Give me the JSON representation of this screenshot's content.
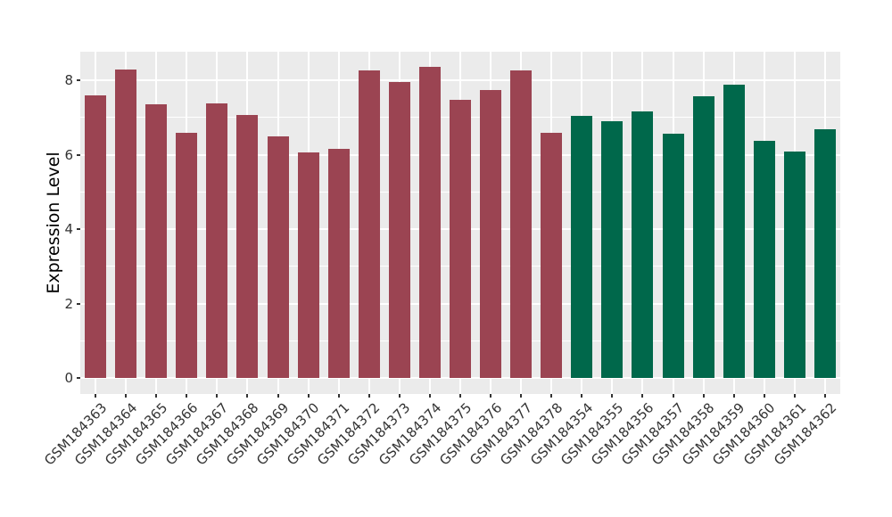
{
  "chart_data": {
    "type": "bar",
    "title": "",
    "xlabel": "",
    "ylabel": "Expression Level",
    "ylim": [
      0,
      8.77
    ],
    "yticks": [
      0,
      2,
      4,
      6,
      8
    ],
    "yticks_minor": [
      1,
      3,
      5,
      7
    ],
    "grid": "on",
    "legend": "none",
    "panel_background": "#EBEBEB",
    "grid_color": "#FFFFFF",
    "axis_text_color": "#333333",
    "tick_mark_color": "#333333",
    "group_colors": [
      "#9B4452",
      "#00684B"
    ],
    "bars": [
      {
        "label": "GSM184363",
        "value": 7.6,
        "group": 0
      },
      {
        "label": "GSM184364",
        "value": 8.28,
        "group": 0
      },
      {
        "label": "GSM184365",
        "value": 7.36,
        "group": 0
      },
      {
        "label": "GSM184366",
        "value": 6.58,
        "group": 0
      },
      {
        "label": "GSM184367",
        "value": 7.38,
        "group": 0
      },
      {
        "label": "GSM184368",
        "value": 7.06,
        "group": 0
      },
      {
        "label": "GSM184369",
        "value": 6.48,
        "group": 0
      },
      {
        "label": "GSM184370",
        "value": 6.07,
        "group": 0
      },
      {
        "label": "GSM184371",
        "value": 6.16,
        "group": 0
      },
      {
        "label": "GSM184372",
        "value": 8.26,
        "group": 0
      },
      {
        "label": "GSM184373",
        "value": 7.95,
        "group": 0
      },
      {
        "label": "GSM184374",
        "value": 8.36,
        "group": 0
      },
      {
        "label": "GSM184375",
        "value": 7.48,
        "group": 0
      },
      {
        "label": "GSM184376",
        "value": 7.73,
        "group": 0
      },
      {
        "label": "GSM184377",
        "value": 8.26,
        "group": 0
      },
      {
        "label": "GSM184378",
        "value": 6.59,
        "group": 0
      },
      {
        "label": "GSM184354",
        "value": 7.04,
        "group": 1
      },
      {
        "label": "GSM184355",
        "value": 6.9,
        "group": 1
      },
      {
        "label": "GSM184356",
        "value": 7.16,
        "group": 1
      },
      {
        "label": "GSM184357",
        "value": 6.57,
        "group": 1
      },
      {
        "label": "GSM184358",
        "value": 7.56,
        "group": 1
      },
      {
        "label": "GSM184359",
        "value": 7.87,
        "group": 1
      },
      {
        "label": "GSM184360",
        "value": 6.38,
        "group": 1
      },
      {
        "label": "GSM184361",
        "value": 6.09,
        "group": 1
      },
      {
        "label": "GSM184362",
        "value": 6.68,
        "group": 1
      }
    ]
  }
}
